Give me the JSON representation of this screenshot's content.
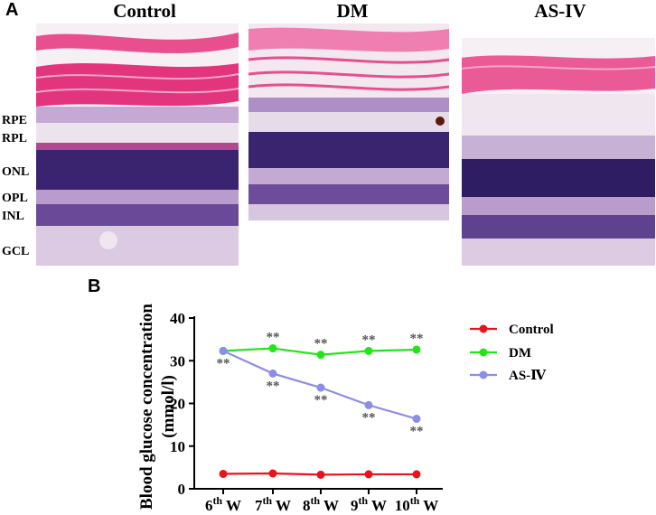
{
  "panel_a": {
    "letter": "A",
    "columns": [
      "Control",
      "DM",
      "AS-IV"
    ],
    "layer_labels": [
      "RPE",
      "RPL",
      "ONL",
      "OPL",
      "INL",
      "GCL"
    ]
  },
  "panel_b": {
    "letter": "B"
  },
  "colors": {
    "control": "#e8141b",
    "dm": "#22e51a",
    "as_iv": "#8c8ee6",
    "stain_pink": "#e84f8f",
    "stain_purple": "#3a2470",
    "stain_light": "#d9c7e3"
  },
  "chart_data": {
    "type": "line",
    "ylabel": "Blood glucose concentration (mmol/l)",
    "xlabel": "",
    "categories": [
      "6th W",
      "7th W",
      "8th W",
      "9th W",
      "10th W"
    ],
    "category_parts": [
      {
        "num": "6",
        "sup": "th",
        "unit": "W"
      },
      {
        "num": "7",
        "sup": "th",
        "unit": "W"
      },
      {
        "num": "8",
        "sup": "th",
        "unit": "W"
      },
      {
        "num": "9",
        "sup": "th",
        "unit": "W"
      },
      {
        "num": "10",
        "sup": "th",
        "unit": "W"
      }
    ],
    "ylim": [
      0,
      40
    ],
    "yticks": [
      0,
      10,
      20,
      30,
      40
    ],
    "legend_position": "right",
    "significance_marker": "**",
    "series": [
      {
        "name": "Control",
        "values": [
          3.5,
          3.6,
          3.3,
          3.4,
          3.4
        ],
        "color": "#e8141b",
        "significance": [
          false,
          false,
          false,
          false,
          false
        ]
      },
      {
        "name": "DM",
        "values": [
          32.3,
          32.9,
          31.4,
          32.3,
          32.6
        ],
        "color": "#22e51a",
        "significance": [
          false,
          true,
          true,
          true,
          true
        ]
      },
      {
        "name": "AS-Ⅳ",
        "values": [
          32.3,
          27.0,
          23.7,
          19.6,
          16.4
        ],
        "color": "#8c8ee6",
        "significance": [
          true,
          true,
          true,
          true,
          true
        ]
      }
    ]
  }
}
